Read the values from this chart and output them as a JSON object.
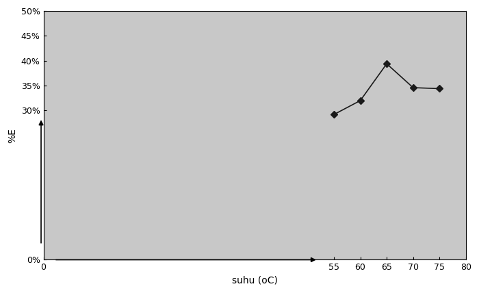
{
  "x": [
    55,
    60,
    65,
    70,
    75
  ],
  "y": [
    0.292,
    0.32,
    0.394,
    0.346,
    0.344
  ],
  "xlim": [
    0,
    80
  ],
  "ylim": [
    0,
    0.5
  ],
  "xticks": [
    0,
    55,
    60,
    65,
    70,
    75,
    80
  ],
  "yticks": [
    0.0,
    0.3,
    0.35,
    0.4,
    0.45,
    0.5
  ],
  "yticklabels": [
    "0%",
    "30%",
    "35%",
    "40%",
    "45%",
    "50%"
  ],
  "xlabel": "suhu (oC)",
  "ylabel": "%E",
  "plot_bg_color": "#c8c8c8",
  "fig_bg_color": "#ffffff",
  "line_color": "#1a1a1a",
  "marker": "D",
  "marker_size": 5,
  "line_width": 1.2
}
